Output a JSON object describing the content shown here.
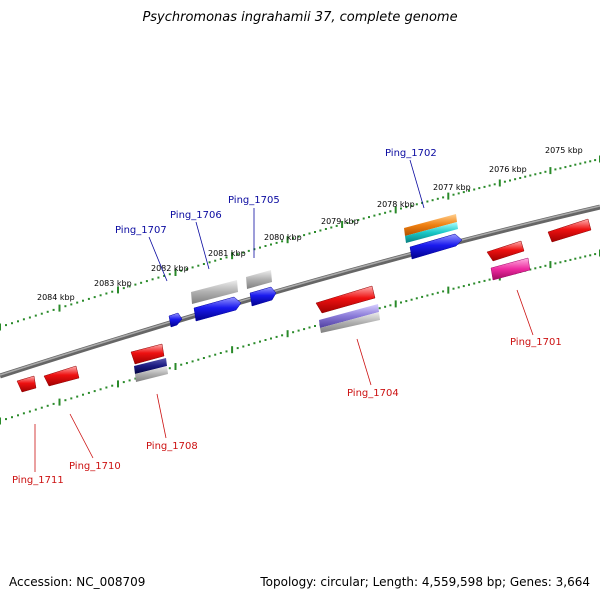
{
  "title": "Psychromonas ingrahamii 37, complete genome",
  "footer": {
    "accession": "Accession: NC_008709",
    "topology": "Topology: circular; Length: 4,559,598 bp; Genes: 3,664"
  },
  "colors": {
    "backbone": "#777777",
    "scale_ticks": "#2a8a2a",
    "forward_label": "#0a0aa0",
    "reverse_label": "#cc1111",
    "cds_forward": "#1a1aee",
    "cds_reverse": "#ee1111",
    "gray_feature": "#b0b0b0",
    "orange_feature": "#f08010",
    "cyan_feature": "#19c8c8",
    "magenta_feature": "#ee2aa0",
    "purple_feature": "#8a7ad8",
    "navy_feature": "#1a1a80"
  },
  "scale": {
    "tick_labels": [
      "2084 kbp",
      "2083 kbp",
      "2082 kbp",
      "2081 kbp",
      "2080 kbp",
      "2079 kbp",
      "2078 kbp",
      "2077 kbp",
      "2076 kbp",
      "2075 kbp"
    ]
  },
  "genes_forward": [
    "Ping_1707",
    "Ping_1706",
    "Ping_1705",
    "Ping_1702"
  ],
  "genes_reverse": [
    "Ping_1711",
    "Ping_1710",
    "Ping_1708",
    "Ping_1704",
    "Ping_1701"
  ]
}
